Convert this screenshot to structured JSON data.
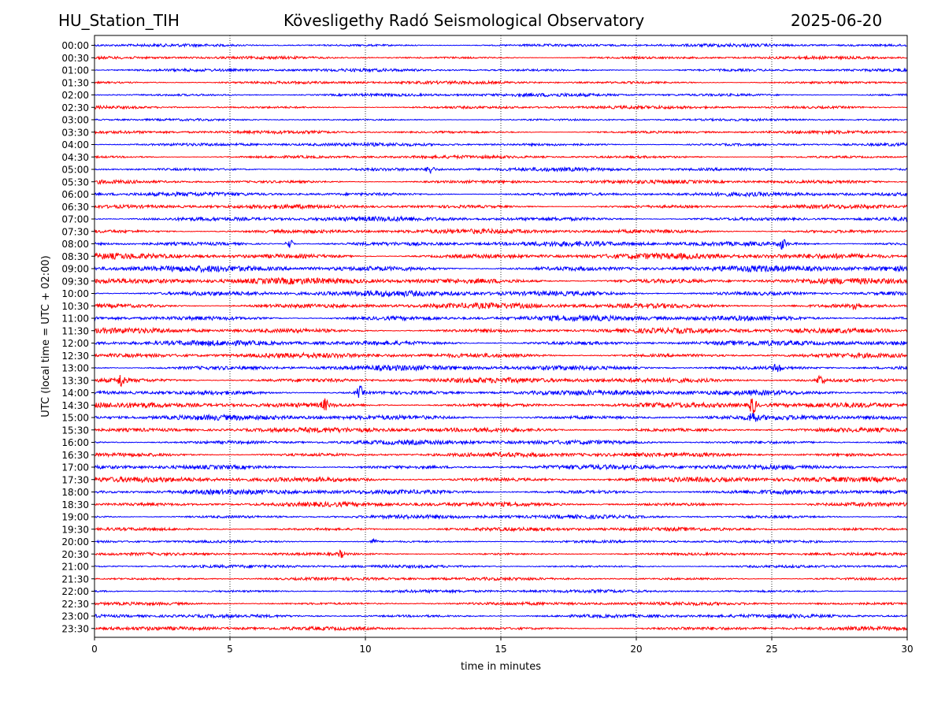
{
  "header": {
    "station": "HU_Station_TIH",
    "observatory": "Kövesligethy Radó Seismological Observatory",
    "date": "2025-06-20"
  },
  "chart_data": {
    "type": "line",
    "title": "Kövesligethy Radó Seismological Observatory",
    "xlabel": "time in minutes",
    "ylabel": "UTC (local time = UTC + 02:00)",
    "xlim": [
      0,
      30
    ],
    "x_ticks": [
      0,
      5,
      10,
      15,
      20,
      25,
      30
    ],
    "grid": "vertical dotted lines at x ticks",
    "row_labels": [
      "00:00",
      "00:30",
      "01:00",
      "01:30",
      "02:00",
      "02:30",
      "03:00",
      "03:30",
      "04:00",
      "04:30",
      "05:00",
      "05:30",
      "06:00",
      "06:30",
      "07:00",
      "07:30",
      "08:00",
      "08:30",
      "09:00",
      "09:30",
      "10:00",
      "10:30",
      "11:00",
      "11:30",
      "12:00",
      "12:30",
      "13:00",
      "13:30",
      "14:00",
      "14:30",
      "15:00",
      "15:30",
      "16:00",
      "16:30",
      "17:00",
      "17:30",
      "18:00",
      "18:30",
      "19:00",
      "19:30",
      "20:00",
      "20:30",
      "21:00",
      "21:30",
      "22:00",
      "22:30",
      "23:00",
      "23:30"
    ],
    "trace_colors": [
      "#0000ff",
      "#ff0000"
    ],
    "trace_amplitude": [
      0.5,
      0.45,
      0.5,
      0.5,
      0.55,
      0.5,
      0.35,
      0.5,
      0.55,
      0.5,
      0.6,
      0.6,
      0.65,
      0.65,
      0.75,
      0.75,
      0.8,
      0.95,
      1.0,
      1.0,
      0.95,
      0.9,
      0.9,
      0.85,
      0.85,
      0.8,
      0.85,
      0.85,
      0.85,
      0.85,
      0.85,
      0.8,
      0.75,
      0.75,
      0.8,
      0.85,
      0.8,
      0.75,
      0.65,
      0.6,
      0.45,
      0.45,
      0.5,
      0.5,
      0.5,
      0.55,
      0.6,
      0.6
    ],
    "events": [
      {
        "row": 10,
        "x": 12.4,
        "amp": 2.2
      },
      {
        "row": 16,
        "x": 7.2,
        "amp": 2.0
      },
      {
        "row": 16,
        "x": 25.4,
        "amp": 2.0
      },
      {
        "row": 27,
        "x": 1.0,
        "amp": 2.4
      },
      {
        "row": 27,
        "x": 26.8,
        "amp": 2.0
      },
      {
        "row": 28,
        "x": 9.8,
        "amp": 2.2
      },
      {
        "row": 29,
        "x": 24.3,
        "amp": 3.0
      },
      {
        "row": 29,
        "x": 8.5,
        "amp": 1.8
      },
      {
        "row": 30,
        "x": 24.3,
        "amp": 2.0
      },
      {
        "row": 40,
        "x": 10.3,
        "amp": 1.6
      },
      {
        "row": 41,
        "x": 9.1,
        "amp": 2.0
      },
      {
        "row": 21,
        "x": 28.1,
        "amp": 1.8
      },
      {
        "row": 26,
        "x": 25.2,
        "amp": 1.8
      }
    ]
  }
}
